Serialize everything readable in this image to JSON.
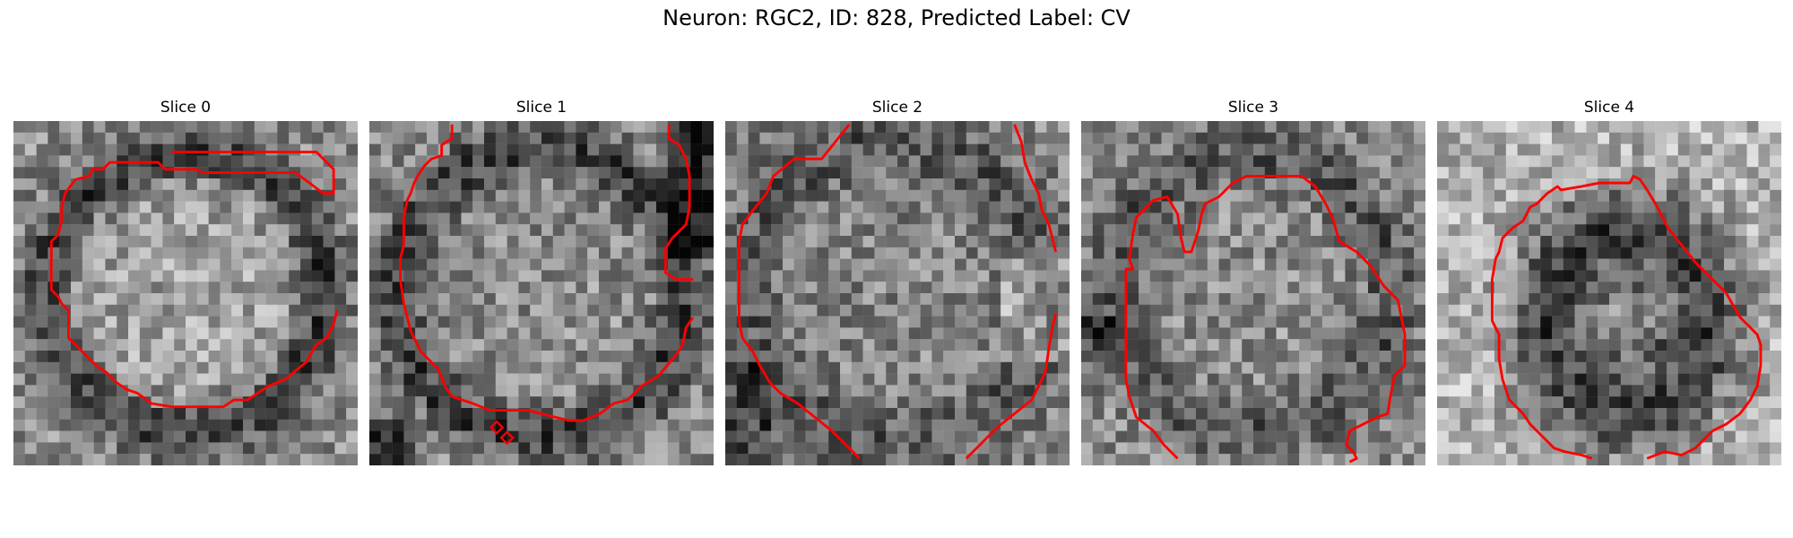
{
  "figure": {
    "title": "Neuron: RGC2, ID: 828, Predicted Label: CV",
    "contour_color": "#ff0000",
    "panels": [
      {
        "title": "Slice 0",
        "seed": 11,
        "pattern": "ring",
        "contour": [
          [
            46,
            9
          ],
          [
            88,
            9
          ],
          [
            93,
            14
          ],
          [
            93,
            21
          ],
          [
            90,
            21
          ],
          [
            82,
            15
          ],
          [
            55,
            15
          ],
          [
            53,
            14
          ],
          [
            44,
            14
          ],
          [
            42,
            12
          ],
          [
            28,
            12
          ],
          [
            26,
            14
          ],
          [
            23,
            14
          ],
          [
            22,
            16
          ],
          [
            18,
            17
          ],
          [
            15,
            21
          ],
          [
            14,
            25
          ],
          [
            14,
            29
          ],
          [
            13,
            33
          ],
          [
            11,
            35
          ],
          [
            11,
            49
          ],
          [
            13,
            51
          ],
          [
            14,
            53
          ],
          [
            16,
            55
          ],
          [
            16,
            63
          ],
          [
            20,
            67
          ],
          [
            24,
            71
          ],
          [
            27,
            73
          ],
          [
            30,
            76
          ],
          [
            33,
            78
          ],
          [
            36,
            79
          ],
          [
            40,
            82
          ],
          [
            46,
            83
          ],
          [
            61,
            83
          ],
          [
            64,
            81
          ],
          [
            68,
            81
          ],
          [
            71,
            79
          ],
          [
            74,
            77
          ],
          [
            79,
            75
          ],
          [
            85,
            70
          ],
          [
            88,
            65
          ],
          [
            91,
            63
          ],
          [
            93,
            59
          ],
          [
            94,
            55
          ]
        ]
      },
      {
        "title": "Slice 1",
        "seed": 23,
        "pattern": "ring_dark_right",
        "contour": [
          [
            24,
            1
          ],
          [
            24,
            5
          ],
          [
            21,
            7
          ],
          [
            21,
            10
          ],
          [
            18,
            11
          ],
          [
            16,
            13
          ],
          [
            14,
            16
          ],
          [
            13,
            18
          ],
          [
            12,
            21
          ],
          [
            11,
            23
          ],
          [
            10,
            28
          ],
          [
            10,
            32
          ],
          [
            10,
            36
          ],
          [
            9,
            40
          ],
          [
            9,
            46
          ],
          [
            10,
            53
          ],
          [
            12,
            61
          ],
          [
            15,
            67
          ],
          [
            20,
            72
          ],
          [
            22,
            77
          ],
          [
            24,
            80
          ],
          [
            30,
            82
          ],
          [
            35,
            84
          ],
          [
            46,
            84
          ],
          [
            54,
            86
          ],
          [
            58,
            87
          ],
          [
            62,
            87
          ],
          [
            67,
            85
          ],
          [
            71,
            82
          ],
          [
            75,
            81
          ],
          [
            79,
            77
          ],
          [
            84,
            74
          ],
          [
            89,
            68
          ],
          [
            91,
            65
          ],
          [
            92,
            60
          ],
          [
            94,
            57
          ]
        ],
        "extra": [
          [
            [
              87,
              1
            ],
            [
              87,
              5
            ],
            [
              90,
              7
            ],
            [
              92,
              11
            ],
            [
              93,
              16
            ],
            [
              93,
              25
            ],
            [
              92,
              30
            ],
            [
              88,
              34
            ],
            [
              86,
              37
            ],
            [
              86,
              44
            ],
            [
              89,
              46
            ],
            [
              94,
              46
            ]
          ]
        ]
      },
      {
        "title": "Slice 2",
        "seed": 37,
        "pattern": "ring_soft",
        "contour": [
          [
            36,
            1
          ],
          [
            28,
            11
          ],
          [
            20,
            11
          ],
          [
            14,
            16
          ],
          [
            12,
            21
          ],
          [
            8,
            26
          ],
          [
            5,
            30
          ],
          [
            4,
            35
          ],
          [
            4,
            58
          ],
          [
            5,
            63
          ],
          [
            8,
            67
          ],
          [
            10,
            71
          ],
          [
            13,
            76
          ],
          [
            16,
            79
          ],
          [
            21,
            82
          ],
          [
            26,
            86
          ],
          [
            31,
            90
          ],
          [
            35,
            94
          ],
          [
            39,
            98
          ]
        ],
        "extra": [
          [
            [
              84,
              1
            ],
            [
              86,
              6
            ],
            [
              87,
              12
            ],
            [
              89,
              17
            ],
            [
              91,
              21
            ],
            [
              92,
              26
            ],
            [
              94,
              30
            ],
            [
              95,
              34
            ],
            [
              96,
              38
            ]
          ],
          [
            [
              70,
              98
            ],
            [
              75,
              93
            ],
            [
              79,
              89
            ],
            [
              84,
              85
            ],
            [
              89,
              81
            ],
            [
              91,
              77
            ],
            [
              93,
              73
            ],
            [
              94,
              66
            ],
            [
              95,
              60
            ],
            [
              96,
              56
            ]
          ]
        ]
      },
      {
        "title": "Slice 3",
        "seed": 53,
        "pattern": "ring_noisy",
        "contour": [
          [
            28,
            98
          ],
          [
            24,
            94
          ],
          [
            21,
            90
          ],
          [
            16,
            86
          ],
          [
            14,
            80
          ],
          [
            13,
            75
          ],
          [
            13,
            43
          ],
          [
            15,
            43
          ],
          [
            14,
            40
          ],
          [
            15,
            33
          ],
          [
            16,
            28
          ],
          [
            21,
            23
          ],
          [
            25,
            22
          ],
          [
            28,
            27
          ],
          [
            29,
            34
          ],
          [
            30,
            38
          ],
          [
            32,
            38
          ],
          [
            33,
            35
          ],
          [
            34,
            32
          ],
          [
            35,
            27
          ],
          [
            36,
            24
          ],
          [
            40,
            22
          ],
          [
            44,
            18
          ],
          [
            48,
            16
          ],
          [
            64,
            16
          ],
          [
            68,
            19
          ],
          [
            71,
            24
          ],
          [
            73,
            28
          ],
          [
            75,
            35
          ],
          [
            80,
            38
          ],
          [
            84,
            42
          ],
          [
            88,
            48
          ],
          [
            92,
            52
          ],
          [
            93,
            57
          ],
          [
            94,
            62
          ],
          [
            94,
            71
          ],
          [
            91,
            74
          ],
          [
            90,
            79
          ],
          [
            89,
            85
          ],
          [
            86,
            86
          ],
          [
            82,
            88
          ],
          [
            78,
            90
          ],
          [
            77,
            94
          ],
          [
            79,
            96
          ],
          [
            80,
            98
          ],
          [
            78,
            99
          ]
        ]
      },
      {
        "title": "Slice 4",
        "seed": 71,
        "pattern": "dark_blob",
        "contour": [
          [
            45,
            98
          ],
          [
            42,
            97
          ],
          [
            37,
            96
          ],
          [
            34,
            95
          ],
          [
            31,
            92
          ],
          [
            27,
            88
          ],
          [
            25,
            85
          ],
          [
            21,
            81
          ],
          [
            19,
            75
          ],
          [
            18,
            69
          ],
          [
            18,
            62
          ],
          [
            16,
            58
          ],
          [
            16,
            46
          ],
          [
            17,
            40
          ],
          [
            18,
            38
          ],
          [
            19,
            34
          ],
          [
            22,
            31
          ],
          [
            25,
            29
          ],
          [
            27,
            25
          ],
          [
            29,
            24
          ],
          [
            32,
            21
          ],
          [
            35,
            19
          ],
          [
            36,
            20
          ],
          [
            42,
            19
          ],
          [
            47,
            18
          ],
          [
            56,
            18
          ],
          [
            57,
            16
          ],
          [
            59,
            17
          ],
          [
            61,
            20
          ],
          [
            64,
            25
          ],
          [
            67,
            31
          ],
          [
            71,
            36
          ],
          [
            75,
            41
          ],
          [
            79,
            45
          ],
          [
            84,
            50
          ],
          [
            88,
            57
          ],
          [
            93,
            62
          ],
          [
            94,
            65
          ],
          [
            94,
            71
          ],
          [
            93,
            77
          ],
          [
            91,
            81
          ],
          [
            88,
            85
          ],
          [
            84,
            88
          ],
          [
            80,
            90
          ],
          [
            75,
            95
          ],
          [
            71,
            97
          ],
          [
            66,
            96
          ],
          [
            61,
            98
          ]
        ]
      }
    ]
  }
}
